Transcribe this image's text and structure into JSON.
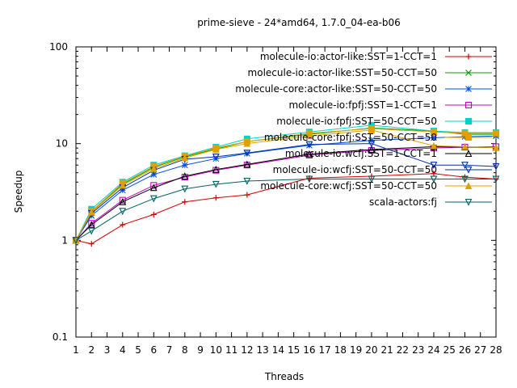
{
  "chart_data": {
    "type": "line",
    "title": "prime-sieve - 24*amd64, 1.7.0_04-ea-b06",
    "xlabel": "Threads",
    "ylabel": "Speedup",
    "xlim": [
      1,
      28
    ],
    "ylim": [
      0.1,
      100
    ],
    "yscale": "log",
    "x_ticks": [
      1,
      2,
      3,
      4,
      5,
      6,
      7,
      8,
      9,
      10,
      11,
      12,
      13,
      14,
      15,
      16,
      17,
      18,
      19,
      20,
      21,
      22,
      23,
      24,
      25,
      26,
      27,
      28
    ],
    "y_ticks": [
      {
        "value": 0.1,
        "label": "0.1"
      },
      {
        "value": 1,
        "label": "1"
      },
      {
        "value": 10,
        "label": "10"
      },
      {
        "value": 100,
        "label": "100"
      }
    ],
    "grid": false,
    "legend_position": "top-right",
    "x": [
      1,
      2,
      4,
      6,
      8,
      10,
      12,
      16,
      20,
      24,
      26,
      28
    ],
    "series": [
      {
        "name": "molecule-io:actor-like:SST=1-CCT=1",
        "color": "#d00000",
        "marker": "plus",
        "values": [
          1.0,
          0.92,
          1.45,
          1.85,
          2.5,
          2.75,
          2.95,
          4.4,
          4.6,
          4.9,
          4.5,
          4.3
        ]
      },
      {
        "name": "molecule-io:actor-like:SST=50-CCT=50",
        "color": "#00a000",
        "marker": "x",
        "values": [
          1.0,
          2.0,
          3.8,
          5.7,
          7.3,
          8.8,
          10.5,
          12.5,
          14.5,
          13.5,
          12.5,
          12.5
        ]
      },
      {
        "name": "molecule-core:actor-like:SST=50-CCT=50",
        "color": "#0050e0",
        "marker": "star",
        "values": [
          1.0,
          1.8,
          3.3,
          4.8,
          6.0,
          7.0,
          7.9,
          9.6,
          10.8,
          11.5,
          11.8,
          12.0
        ]
      },
      {
        "name": "molecule-io:fpfj:SST=1-CCT=1",
        "color": "#c000c0",
        "marker": "square",
        "values": [
          1.0,
          1.5,
          2.6,
          3.7,
          4.5,
          5.3,
          6.0,
          7.6,
          8.5,
          9.0,
          9.2,
          9.3
        ]
      },
      {
        "name": "molecule-io:fpfj:SST=50-CCT=50",
        "color": "#00d0d0",
        "marker": "filled-square",
        "values": [
          1.0,
          2.1,
          4.0,
          6.0,
          7.5,
          9.2,
          11.2,
          13.2,
          15.5,
          13.5,
          13.0,
          13.0
        ]
      },
      {
        "name": "molecule-core:fpfj:SST=50-CCT=50",
        "color": "#e0a000",
        "marker": "circle",
        "values": [
          1.0,
          2.0,
          3.9,
          5.8,
          7.4,
          9.0,
          10.5,
          12.8,
          14.3,
          13.2,
          12.8,
          12.8
        ]
      },
      {
        "name": "molecule-io:wcfj:SST=1-CCT=1",
        "color": "#000000",
        "marker": "triangle-up",
        "values": [
          1.0,
          1.45,
          2.5,
          3.5,
          4.6,
          5.4,
          6.1,
          7.8,
          8.7,
          9.3,
          9.2,
          9.1
        ]
      },
      {
        "name": "molecule-io:wcfj:SST=50-CCT=50",
        "color": "#0030b0",
        "marker": "triangle-down",
        "values": [
          1.0,
          1.9,
          3.5,
          5.3,
          6.9,
          7.3,
          8.0,
          9.8,
          10.0,
          6.0,
          6.0,
          5.8
        ]
      },
      {
        "name": "molecule-core:wcfj:SST=50-CCT=50",
        "color": "#e0a000",
        "marker": "triangle-filled",
        "values": [
          1.0,
          1.95,
          3.7,
          5.5,
          7.1,
          8.7,
          10.0,
          12.0,
          13.8,
          9.5,
          9.3,
          9.1
        ]
      },
      {
        "name": "scala-actors:fj",
        "color": "#006060",
        "marker": "triangle-down",
        "values": [
          1.0,
          1.25,
          2.0,
          2.7,
          3.4,
          3.8,
          4.1,
          4.3,
          4.3,
          4.3,
          4.3,
          4.3
        ]
      }
    ]
  }
}
